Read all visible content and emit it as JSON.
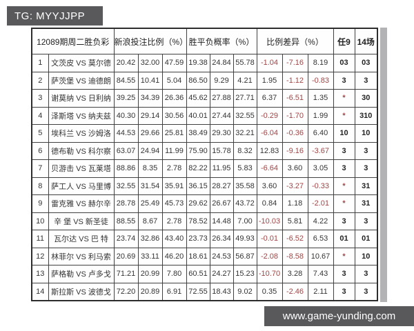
{
  "top_bar": {
    "text": "TG: MYYJJPP"
  },
  "footer_bar": {
    "text": "www.game-yunding.com"
  },
  "table": {
    "col_groups": [
      {
        "label": "12089期周二胜负彩",
        "span": 2
      },
      {
        "label": "新浪投注比例（%）",
        "span": 3
      },
      {
        "label": "胜平负概率（%）",
        "span": 3
      },
      {
        "label": "比例差异（%）",
        "span": 3
      },
      {
        "label": "任9",
        "span": 1
      },
      {
        "label": "14场",
        "span": 1
      }
    ],
    "rows": [
      {
        "no": "1",
        "match": "文茨皮 VS 莫尔德",
        "bet": [
          "20.42",
          "32.00",
          "47.59"
        ],
        "prob": [
          "19.38",
          "24.84",
          "55.78"
        ],
        "diff": [
          "-1.04",
          "-7.16",
          "8.19"
        ],
        "ren9": "03",
        "c14": "03"
      },
      {
        "no": "2",
        "match": "萨茨堡 VS 迪德朗",
        "bet": [
          "84.55",
          "10.41",
          "5.04"
        ],
        "prob": [
          "86.50",
          "9.29",
          "4.21"
        ],
        "diff": [
          "1.95",
          "-1.12",
          "-0.83"
        ],
        "ren9": "3",
        "c14": "3"
      },
      {
        "no": "3",
        "match": "谢莫纳 VS 日利纳",
        "bet": [
          "39.25",
          "34.39",
          "26.36"
        ],
        "prob": [
          "45.62",
          "27.88",
          "27.71"
        ],
        "diff": [
          "6.37",
          "-6.51",
          "1.35"
        ],
        "ren9": "*",
        "c14": "30"
      },
      {
        "no": "4",
        "match": "泽斯塔 VS 纳夫兹",
        "bet": [
          "40.30",
          "29.14",
          "30.56"
        ],
        "prob": [
          "40.01",
          "27.44",
          "32.55"
        ],
        "diff": [
          "-0.29",
          "-1.70",
          "1.99"
        ],
        "ren9": "*",
        "c14": "310"
      },
      {
        "no": "5",
        "match": "埃科兰 VS 沙姆洛",
        "bet": [
          "44.53",
          "29.66",
          "25.81"
        ],
        "prob": [
          "38.49",
          "29.30",
          "32.21"
        ],
        "diff": [
          "-6.04",
          "-0.36",
          "6.40"
        ],
        "ren9": "10",
        "c14": "10"
      },
      {
        "no": "6",
        "match": "德布勒 VS 科尔察",
        "bet": [
          "63.07",
          "24.94",
          "11.99"
        ],
        "prob": [
          "75.90",
          "15.78",
          "8.32"
        ],
        "diff": [
          "12.83",
          "-9.16",
          "-3.67"
        ],
        "ren9": "3",
        "c14": "3"
      },
      {
        "no": "7",
        "match": "贝游击 VS 瓦莱塔",
        "bet": [
          "88.86",
          "8.35",
          "2.78"
        ],
        "prob": [
          "82.22",
          "11.95",
          "5.83"
        ],
        "diff": [
          "-6.64",
          "3.60",
          "3.05"
        ],
        "ren9": "3",
        "c14": "3"
      },
      {
        "no": "8",
        "match": "萨工人 VS 马里博",
        "bet": [
          "32.55",
          "31.54",
          "35.91"
        ],
        "prob": [
          "36.15",
          "28.27",
          "35.58"
        ],
        "diff": [
          "3.60",
          "-3.27",
          "-0.33"
        ],
        "ren9": "*",
        "c14": "31"
      },
      {
        "no": "9",
        "match": "雷克雅 VS 赫尔辛",
        "bet": [
          "28.78",
          "25.49",
          "45.73"
        ],
        "prob": [
          "29.62",
          "26.67",
          "43.72"
        ],
        "diff": [
          "0.84",
          "1.18",
          "-2.01"
        ],
        "ren9": "*",
        "c14": "31"
      },
      {
        "no": "10",
        "match": "辛 堡 VS 新圣徒",
        "bet": [
          "88.55",
          "8.67",
          "2.78"
        ],
        "prob": [
          "78.52",
          "14.48",
          "7.00"
        ],
        "diff": [
          "-10.03",
          "5.81",
          "4.22"
        ],
        "ren9": "3",
        "c14": "3"
      },
      {
        "no": "11",
        "match": "瓦尔达 VS 巴 特",
        "bet": [
          "23.74",
          "32.86",
          "43.40"
        ],
        "prob": [
          "23.73",
          "26.34",
          "49.93"
        ],
        "diff": [
          "-0.01",
          "-6.52",
          "6.53"
        ],
        "ren9": "01",
        "c14": "01"
      },
      {
        "no": "12",
        "match": "林菲尔 VS 利马索",
        "bet": [
          "20.69",
          "33.11",
          "46.20"
        ],
        "prob": [
          "18.61",
          "24.53",
          "56.87"
        ],
        "diff": [
          "-2.08",
          "-8.58",
          "10.67"
        ],
        "ren9": "*",
        "c14": "10"
      },
      {
        "no": "13",
        "match": "萨格勒 VS 卢多戈",
        "bet": [
          "71.21",
          "20.99",
          "7.80"
        ],
        "prob": [
          "60.51",
          "24.27",
          "15.23"
        ],
        "diff": [
          "-10.70",
          "3.28",
          "7.43"
        ],
        "ren9": "3",
        "c14": "3"
      },
      {
        "no": "14",
        "match": "斯拉斯 VS 波德戈",
        "bet": [
          "72.20",
          "20.89",
          "6.91"
        ],
        "prob": [
          "72.55",
          "18.43",
          "9.02"
        ],
        "diff": [
          "0.35",
          "-2.46",
          "2.11"
        ],
        "ren9": "3",
        "c14": "3"
      }
    ]
  },
  "colors": {
    "bar_background": "#59595b",
    "negative_value": "#a04545",
    "table_border": "#3f3f3f",
    "scroll_strip": "#b3b3b5"
  }
}
